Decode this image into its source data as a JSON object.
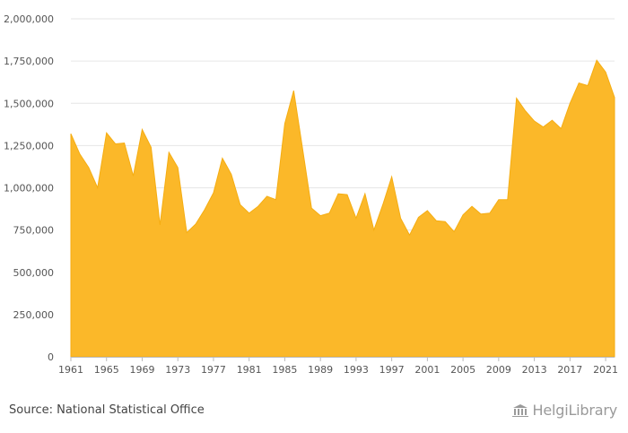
{
  "chart_data": {
    "type": "area",
    "x": [
      1961,
      1962,
      1963,
      1964,
      1965,
      1966,
      1967,
      1968,
      1969,
      1970,
      1971,
      1972,
      1973,
      1974,
      1975,
      1976,
      1977,
      1978,
      1979,
      1980,
      1981,
      1982,
      1983,
      1984,
      1985,
      1986,
      1987,
      1988,
      1989,
      1990,
      1991,
      1992,
      1993,
      1994,
      1995,
      1996,
      1997,
      1998,
      1999,
      2000,
      2001,
      2002,
      2003,
      2004,
      2005,
      2006,
      2007,
      2008,
      2009,
      2010,
      2011,
      2012,
      2013,
      2014,
      2015,
      2016,
      2017,
      2018,
      2019,
      2020,
      2021,
      2022
    ],
    "values": [
      1320000,
      1200000,
      1120000,
      1000000,
      1325000,
      1260000,
      1265000,
      1070000,
      1345000,
      1240000,
      780000,
      1210000,
      1120000,
      735000,
      785000,
      870000,
      970000,
      1175000,
      1080000,
      900000,
      850000,
      890000,
      950000,
      930000,
      1380000,
      1575000,
      1230000,
      880000,
      835000,
      850000,
      965000,
      960000,
      820000,
      965000,
      750000,
      900000,
      1065000,
      820000,
      720000,
      825000,
      865000,
      805000,
      800000,
      740000,
      840000,
      890000,
      845000,
      850000,
      930000,
      930000,
      1530000,
      1455000,
      1395000,
      1360000,
      1400000,
      1350000,
      1500000,
      1620000,
      1605000,
      1755000,
      1685000,
      1535000
    ],
    "x_tick_labels": [
      "1961",
      "1965",
      "1969",
      "1973",
      "1977",
      "1981",
      "1985",
      "1989",
      "1993",
      "1997",
      "2001",
      "2005",
      "2009",
      "2013",
      "2017",
      "2021"
    ],
    "y_tick_labels": [
      "0",
      "250,000",
      "500,000",
      "750,000",
      "1,000,000",
      "1,250,000",
      "1,500,000",
      "1,750,000",
      "2,000,000"
    ],
    "ylim": [
      0,
      2000000
    ],
    "fill_color": "#fbb829",
    "grid": true
  },
  "footer": {
    "source": "Source: National Statistical Office",
    "brand": "HelgiLibrary"
  }
}
